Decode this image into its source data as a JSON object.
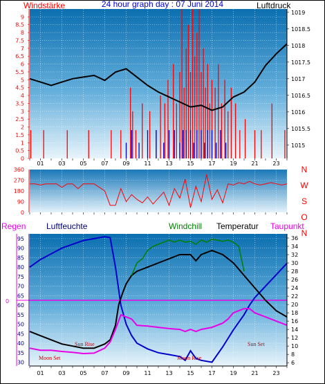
{
  "title": "24 hour graph day : 07 Juni 2014",
  "colors": {
    "red": "#ff0000",
    "blue": "#0000cc",
    "dark_blue": "#000080",
    "black": "#000000",
    "green": "#008000",
    "magenta": "#e800e8"
  },
  "chart_data": [
    {
      "type": "bar",
      "title": "24 hour graph day : 07 Juni 2014",
      "left_label": "Windstärke",
      "right_label": "Luftdruck",
      "x_ticks": [
        "01",
        "03",
        "05",
        "07",
        "09",
        "11",
        "13",
        "15",
        "17",
        "19",
        "21",
        "23"
      ],
      "x_range": [
        0,
        24
      ],
      "y_left_ticks": [
        "0",
        "0.5",
        "1",
        "1.5",
        "2",
        "2.5",
        "3",
        "3.5",
        "4",
        "4.5",
        "5",
        "5.5",
        "6",
        "6.5",
        "7",
        "7.5",
        "8",
        "8.5",
        "9"
      ],
      "y_left_range": [
        0,
        9.5
      ],
      "y_right_ticks": [
        "1015",
        "1015.5",
        "1016",
        "1016.5",
        "1017",
        "1017.5",
        "1018",
        "1018.5",
        "1019"
      ],
      "y_right_range": [
        1014.6,
        1019.1
      ],
      "series": [
        {
          "name": "Luftdruck",
          "type": "line",
          "x": [
            0,
            1,
            2,
            3,
            4,
            5,
            6,
            7,
            8,
            9,
            10,
            11,
            12,
            13,
            14,
            15,
            16,
            17,
            18,
            19,
            20,
            21,
            22,
            23,
            24
          ],
          "y": [
            1017.0,
            1016.9,
            1016.8,
            1016.9,
            1017.0,
            1017.05,
            1017.1,
            1016.95,
            1017.2,
            1017.3,
            1017.05,
            1016.8,
            1016.6,
            1016.45,
            1016.3,
            1016.15,
            1016.2,
            1016.05,
            1016.15,
            1016.45,
            1016.6,
            1016.9,
            1017.4,
            1017.75,
            1018.05
          ]
        },
        {
          "name": "gust",
          "type": "bar-red",
          "x": [
            0.1,
            1.3,
            3.5,
            5.5,
            7.6,
            8.5,
            9.4,
            9.6,
            9.9,
            10.5,
            11.2,
            11.8,
            12.2,
            12.6,
            12.9,
            13.4,
            13.7,
            14.0,
            14.2,
            14.4,
            14.6,
            14.8,
            15.0,
            15.2,
            15.4,
            15.6,
            15.8,
            16.0,
            16.2,
            16.4,
            16.6,
            16.8,
            17.0,
            17.3,
            17.6,
            17.9,
            18.2,
            18.5,
            18.8,
            19.2,
            19.6,
            20.1,
            21.0,
            21.6,
            22.6,
            23.8
          ],
          "y": [
            1.8,
            1.8,
            1.8,
            1.8,
            1.8,
            1.8,
            4.5,
            3.0,
            1.8,
            3.5,
            3.0,
            1.8,
            4.0,
            3.5,
            5.0,
            6.0,
            3.5,
            5.5,
            9.5,
            4.5,
            7.0,
            8.5,
            5.5,
            9.5,
            6.5,
            8.0,
            9.5,
            5.5,
            7.0,
            4.5,
            6.0,
            3.5,
            5.0,
            4.5,
            6.0,
            3.5,
            5.0,
            3.0,
            4.5,
            3.5,
            1.8,
            2.5,
            1.8,
            1.8,
            3.5,
            1.8
          ]
        },
        {
          "name": "wind",
          "type": "bar-blue",
          "x": [
            9.0,
            9.5,
            10.2,
            11.0,
            11.8,
            12.5,
            13.0,
            13.5,
            14.0,
            14.3,
            14.6,
            15.0,
            15.3,
            15.6,
            16.0,
            16.3,
            16.6,
            17.0,
            17.4,
            17.8,
            18.3
          ],
          "y": [
            1.0,
            1.8,
            1.0,
            1.8,
            1.8,
            1.0,
            1.8,
            1.8,
            1.0,
            1.8,
            1.8,
            1.8,
            1.0,
            1.8,
            1.8,
            1.0,
            1.8,
            1.8,
            1.0,
            1.8,
            1.0
          ]
        }
      ]
    },
    {
      "type": "line",
      "title": "",
      "y_left_ticks": [
        "360",
        "270",
        "180",
        "90",
        "0"
      ],
      "y_range": [
        0,
        360
      ],
      "right_labels": [
        "N",
        "W",
        "S",
        "O",
        "N"
      ],
      "series": [
        {
          "name": "Windrichtung",
          "type": "line",
          "x": [
            0,
            0.5,
            1,
            1.5,
            2,
            2.5,
            3,
            3.5,
            4,
            4.5,
            5,
            5.5,
            6,
            6.5,
            7,
            7.5,
            8,
            8.5,
            9,
            9.5,
            10,
            10.5,
            11,
            11.5,
            12,
            12.5,
            13,
            13.5,
            14,
            14.5,
            15,
            15.5,
            16,
            16.5,
            17,
            17.5,
            18,
            18.5,
            19,
            19.5,
            20,
            20.5,
            21,
            21.5,
            22,
            22.5,
            23,
            23.5,
            24
          ],
          "y": [
            240,
            240,
            230,
            240,
            240,
            240,
            210,
            240,
            240,
            200,
            240,
            240,
            240,
            210,
            180,
            60,
            60,
            200,
            90,
            150,
            110,
            80,
            130,
            70,
            120,
            170,
            60,
            200,
            120,
            280,
            40,
            220,
            90,
            320,
            110,
            190,
            80,
            240,
            230,
            250,
            240,
            260,
            240,
            230,
            240,
            250,
            240,
            230,
            240
          ]
        }
      ]
    },
    {
      "type": "line",
      "title": "",
      "labels": {
        "regen": "Regen",
        "luftfeuchte": "Luftfeuchte",
        "windchill": "Windchill",
        "temperatur": "Temperatur",
        "taupunkt": "Taupunkt"
      },
      "regen_tick": "0",
      "y_left_ticks": [
        "30",
        "35",
        "40",
        "45",
        "50",
        "55",
        "60",
        "65",
        "70",
        "75",
        "80",
        "85",
        "90",
        "95"
      ],
      "y_left_range": [
        28,
        97.5
      ],
      "y_right_ticks": [
        "6",
        "8",
        "10",
        "12",
        "14",
        "16",
        "18",
        "20",
        "22",
        "24",
        "26",
        "28",
        "30",
        "32",
        "34",
        "36"
      ],
      "y_right_range": [
        5.2,
        37
      ],
      "annotations": [
        "Moon Set",
        "Sun Rise",
        "Sun Set",
        "Moon Rise"
      ],
      "series": [
        {
          "name": "Luftfeuchte",
          "axis": "left",
          "x": [
            0,
            1,
            2,
            3,
            4,
            5,
            6,
            7,
            7.5,
            8,
            8.5,
            9,
            9.5,
            10,
            11,
            12,
            13,
            14,
            14.5,
            15,
            15.5,
            16,
            17,
            18,
            19,
            20,
            20.5,
            21,
            22,
            23,
            24
          ],
          "y": [
            80,
            84,
            87,
            90,
            92,
            94,
            95,
            96,
            95.5,
            80,
            60,
            50,
            44,
            40,
            37,
            35,
            34,
            33,
            31,
            36,
            32,
            31,
            30,
            38,
            47,
            55,
            60,
            64,
            70,
            76,
            82
          ]
        },
        {
          "name": "Temperatur",
          "axis": "right",
          "x": [
            0,
            1,
            2,
            3,
            4,
            5,
            6,
            7,
            7.5,
            8,
            8.3,
            8.7,
            9,
            9.5,
            10,
            11,
            12,
            13,
            14,
            15,
            15.5,
            16,
            17,
            18,
            19,
            20,
            21,
            22,
            23,
            24
          ],
          "y": [
            13.5,
            12.5,
            11.5,
            10.5,
            10,
            9.5,
            9.5,
            10.5,
            11.5,
            15,
            20,
            23,
            25,
            27,
            28,
            29,
            30,
            31,
            32,
            32,
            30.5,
            32,
            33,
            32,
            30,
            27,
            24,
            21,
            18.5,
            17
          ]
        },
        {
          "name": "Windchill",
          "axis": "right",
          "x": [
            9.5,
            10,
            10.5,
            11,
            11.5,
            12,
            12.5,
            13,
            13.5,
            14,
            14.5,
            15,
            15.5,
            16,
            16.5,
            17,
            17.5,
            18,
            18.5,
            19,
            19.5,
            20
          ],
          "y": [
            27,
            30,
            31,
            33,
            34,
            34.5,
            35,
            35.5,
            35,
            35.5,
            35,
            35.2,
            34.5,
            35.5,
            35,
            35.7,
            35.5,
            35.2,
            35.5,
            35,
            34,
            28
          ]
        },
        {
          "name": "Taupunkt",
          "axis": "right",
          "x": [
            0,
            1,
            2,
            3,
            4,
            5,
            6,
            7,
            7.5,
            8,
            8.5,
            9,
            9.5,
            10,
            11,
            12,
            13,
            14,
            14.5,
            15,
            15.5,
            16,
            17,
            18,
            18.5,
            19,
            19.5,
            20,
            20.5,
            21,
            22,
            23,
            24
          ],
          "y": [
            9.5,
            9,
            9,
            8.7,
            8.5,
            8.2,
            8.3,
            9.5,
            11,
            14,
            17.5,
            17,
            16.5,
            15,
            14.8,
            14.5,
            14.2,
            14,
            13.5,
            14,
            13.5,
            14,
            14.5,
            15.5,
            16.5,
            18,
            18.5,
            19,
            19,
            18,
            17,
            16,
            15
          ]
        }
      ]
    }
  ]
}
